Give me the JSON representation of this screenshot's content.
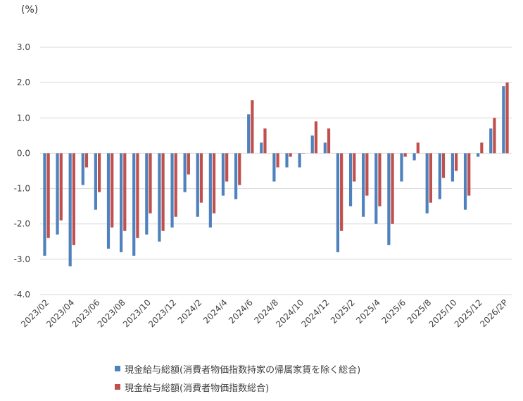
{
  "chart_data": {
    "type": "bar",
    "unit_label": "(%)",
    "ylim": [
      -4.0,
      3.0
    ],
    "yticks": [
      3.0,
      2.0,
      1.0,
      0.0,
      -1.0,
      -2.0,
      -3.0,
      -4.0
    ],
    "ytick_labels": [
      "3.0",
      "2.0",
      "1.0",
      "0.0",
      "-1.0",
      "-2.0",
      "-3.0",
      "-4.0"
    ],
    "grid": true,
    "legend_position": "bottom",
    "categories": [
      "2023/02",
      "2023/03",
      "2023/04",
      "2023/05",
      "2023/06",
      "2023/07",
      "2023/08",
      "2023/09",
      "2023/10",
      "2023/11",
      "2023/12",
      "2024/1",
      "2024/2",
      "2024/3",
      "2024/4",
      "2024/5",
      "2024/6",
      "2024/7",
      "2024/8",
      "2024/9",
      "2024/10",
      "2024/11",
      "2024/12",
      "2025/1",
      "2025/2",
      "2025/3",
      "2025/4",
      "2025/5",
      "2025/6",
      "2025/7",
      "2025/8",
      "2025/9",
      "2025/10",
      "2025/11",
      "2025/12",
      "2026/1",
      "2026/2P"
    ],
    "xtick_labels": [
      "2023/02",
      "2023/04",
      "2023/06",
      "2023/08",
      "2023/10",
      "2023/12",
      "2024/2",
      "2024/4",
      "2024/6",
      "2024/8",
      "2024/10",
      "2024/12",
      "2025/2",
      "2025/4",
      "2025/6",
      "2025/8",
      "2025/10",
      "2025/12",
      "2026/2P"
    ],
    "series": [
      {
        "name": "現金給与総額(消費者物価指数持家の帰属家賃を除く総合)",
        "color": "#4f81bd",
        "values": [
          -2.9,
          -2.3,
          -3.2,
          -0.9,
          -1.6,
          -2.7,
          -2.8,
          -2.9,
          -2.3,
          -2.5,
          -2.1,
          -1.1,
          -1.8,
          -2.1,
          -1.2,
          -1.3,
          1.1,
          0.3,
          -0.8,
          -0.4,
          -0.4,
          0.5,
          0.3,
          -2.8,
          -1.5,
          -1.8,
          -2.0,
          -2.6,
          -0.8,
          -0.2,
          -1.7,
          -1.3,
          -0.8,
          -1.6,
          -0.1,
          0.7,
          1.9
        ]
      },
      {
        "name": "現金給与総額(消費者物価指数総合)",
        "color": "#c0504d",
        "values": [
          -2.4,
          -1.9,
          -2.6,
          -0.4,
          -1.1,
          -2.1,
          -2.2,
          -2.4,
          -1.7,
          -2.2,
          -1.8,
          -0.6,
          -1.4,
          -1.7,
          -0.8,
          -0.9,
          1.5,
          0.7,
          -0.4,
          -0.1,
          0.0,
          0.9,
          0.7,
          -2.2,
          -0.8,
          -1.2,
          -1.5,
          -2.0,
          -0.1,
          0.3,
          -1.4,
          -0.7,
          -0.5,
          -1.2,
          0.3,
          1.0,
          2.0
        ]
      }
    ]
  }
}
